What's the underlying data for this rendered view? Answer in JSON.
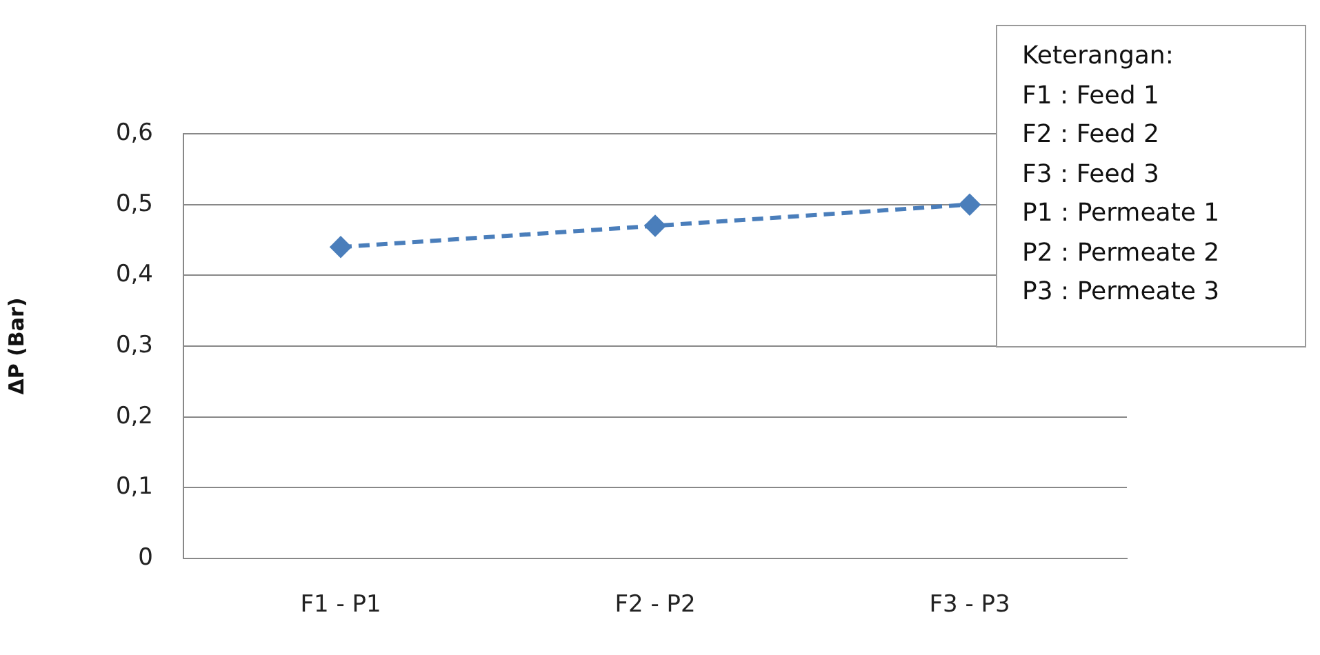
{
  "chart_data": {
    "type": "line",
    "ylabel": "ΔP (Bar)",
    "categories": [
      "F1 - P1",
      "F2 - P2",
      "F3 - P3"
    ],
    "series": [
      {
        "color": "#4a7ebb",
        "values": [
          0.44,
          0.47,
          0.5
        ]
      }
    ],
    "ylim": [
      0,
      0.6
    ],
    "yticks": [
      0,
      {
        "value": 0.1,
        "label": "0,1"
      },
      {
        "value": 0.2,
        "label": "0,2"
      },
      {
        "value": 0.3,
        "label": "0,3"
      },
      {
        "value": 0.4,
        "label": "0,4"
      },
      {
        "value": 0.5,
        "label": "0,5"
      },
      {
        "value": 0.6,
        "label": "0,6"
      }
    ],
    "grid": "y",
    "legend": false,
    "marker": "diamond",
    "line_style": "dashed",
    "annotations": [
      "Keterangan:",
      "F1 : Feed 1",
      "F2 : Feed 2",
      "F3 : Feed 3",
      "P1 : Permeate 1",
      "P2 : Permeate 2",
      "P3 : Permeate 3"
    ]
  }
}
